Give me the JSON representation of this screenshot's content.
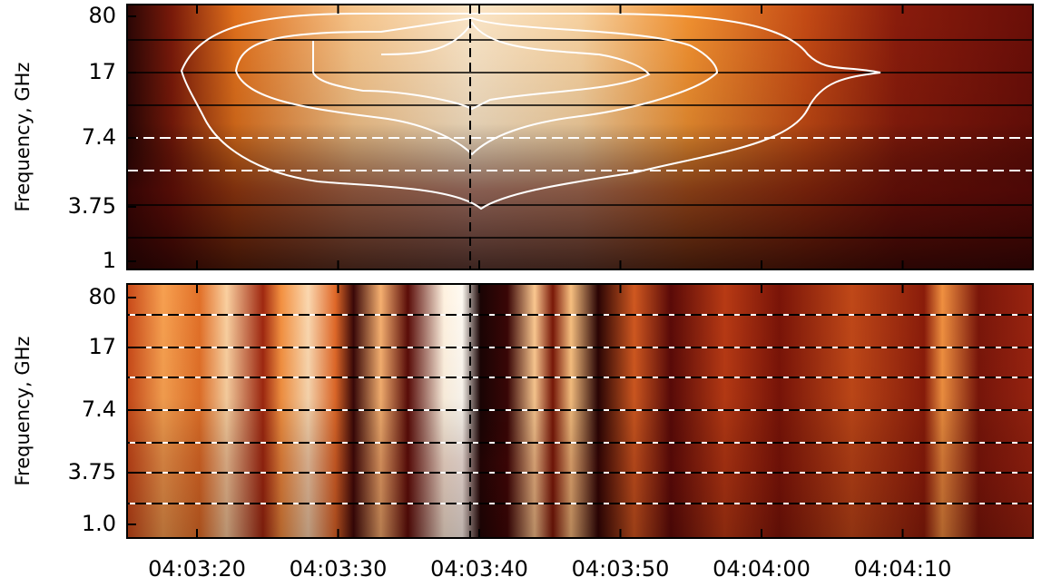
{
  "chart_data": [
    {
      "type": "heatmap",
      "y_label": "Frequency, GHz",
      "yticks": [
        80,
        17,
        7.4,
        3.75,
        1
      ]
    },
    {
      "type": "heatmap",
      "y_label": "Frequency, GHz",
      "yticks": [
        80,
        17,
        7.4,
        3.75,
        {
          "value": 1,
          "label": "1.0"
        }
      ],
      "xticks": [
        "04:03:20",
        "04:03:30",
        "04:03:40",
        "04:03:50",
        "04:04:00",
        "04:04:10"
      ]
    }
  ]
}
